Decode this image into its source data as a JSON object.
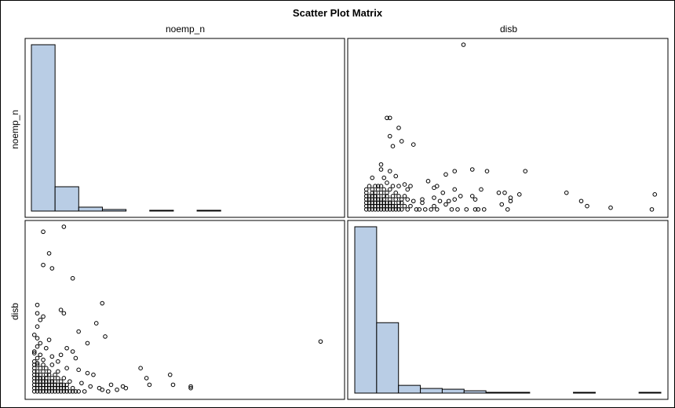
{
  "chart_data": {
    "type": "scatter",
    "title": "Scatter Plot Matrix",
    "variables": [
      "noemp_n",
      "disb"
    ],
    "colors": {
      "bar_fill": "#b9cde5",
      "bar_stroke": "#000000",
      "marker_stroke": "#000000",
      "frame": "#000000"
    },
    "marker": "open-circle",
    "panels": [
      {
        "id": "noemp_n-histogram",
        "type": "histogram",
        "variable": "noemp_n",
        "bins": 13,
        "counts": [
          212,
          31,
          5,
          2,
          0,
          1,
          0,
          1,
          0,
          0,
          0,
          0,
          0
        ]
      },
      {
        "id": "disb-vs-noemp_n",
        "type": "scatter",
        "x_variable": "disb",
        "y_variable": "noemp_n",
        "xlim": [
          0,
          100
        ],
        "ylim": [
          0,
          100
        ],
        "points": [
          [
            34,
            100
          ],
          [
            8,
            56
          ],
          [
            9,
            56
          ],
          [
            12,
            50
          ],
          [
            9,
            45
          ],
          [
            13,
            42
          ],
          [
            10,
            39
          ],
          [
            17,
            40
          ],
          [
            6,
            28
          ],
          [
            6,
            25
          ],
          [
            9,
            24
          ],
          [
            11,
            21
          ],
          [
            7,
            20
          ],
          [
            3,
            20
          ],
          [
            31,
            24
          ],
          [
            37,
            25
          ],
          [
            42,
            24
          ],
          [
            55,
            24
          ],
          [
            28,
            22
          ],
          [
            5,
            15
          ],
          [
            8,
            17
          ],
          [
            14,
            16
          ],
          [
            22,
            18
          ],
          [
            24,
            14
          ],
          [
            25,
            15
          ],
          [
            27,
            11
          ],
          [
            31,
            13
          ],
          [
            40,
            13
          ],
          [
            46,
            11
          ],
          [
            48,
            11
          ],
          [
            50,
            8
          ],
          [
            53,
            10
          ],
          [
            69,
            11
          ],
          [
            37,
            9
          ],
          [
            50,
            6
          ],
          [
            47,
            4
          ],
          [
            49,
            1
          ],
          [
            20,
            5
          ],
          [
            24,
            3
          ],
          [
            28,
            4
          ],
          [
            23,
            1
          ],
          [
            25,
            1
          ],
          [
            30,
            1
          ],
          [
            32,
            1
          ],
          [
            35,
            1
          ],
          [
            38,
            1
          ],
          [
            39,
            1
          ],
          [
            41,
            1
          ],
          [
            29,
            6
          ],
          [
            31,
            7
          ],
          [
            33,
            9
          ],
          [
            38,
            7
          ],
          [
            24,
            8
          ],
          [
            26,
            6
          ],
          [
            17,
            6
          ],
          [
            20,
            7
          ],
          [
            74,
            6
          ],
          [
            76,
            3
          ],
          [
            84,
            2
          ],
          [
            98,
            1
          ],
          [
            99,
            10
          ],
          [
            1,
            1
          ],
          [
            2,
            1
          ],
          [
            3,
            1
          ],
          [
            4,
            1
          ],
          [
            5,
            1
          ],
          [
            6,
            1
          ],
          [
            7,
            1
          ],
          [
            8,
            1
          ],
          [
            9,
            1
          ],
          [
            10,
            1
          ],
          [
            11,
            1
          ],
          [
            12,
            1
          ],
          [
            13,
            1
          ],
          [
            15,
            1
          ],
          [
            18,
            1
          ],
          [
            19,
            1
          ],
          [
            21,
            1
          ],
          [
            1,
            3
          ],
          [
            2,
            3
          ],
          [
            3,
            3
          ],
          [
            4,
            3
          ],
          [
            5,
            3
          ],
          [
            6,
            3
          ],
          [
            7,
            3
          ],
          [
            8,
            3
          ],
          [
            9,
            3
          ],
          [
            10,
            3
          ],
          [
            11,
            3
          ],
          [
            12,
            3
          ],
          [
            14,
            3
          ],
          [
            16,
            3
          ],
          [
            1,
            5
          ],
          [
            2,
            5
          ],
          [
            3,
            5
          ],
          [
            4,
            5
          ],
          [
            5,
            5
          ],
          [
            6,
            5
          ],
          [
            7,
            5
          ],
          [
            8,
            5
          ],
          [
            9,
            5
          ],
          [
            10,
            5
          ],
          [
            12,
            5
          ],
          [
            13,
            5
          ],
          [
            1,
            7
          ],
          [
            2,
            7
          ],
          [
            3,
            7
          ],
          [
            4,
            7
          ],
          [
            5,
            7
          ],
          [
            6,
            7
          ],
          [
            7,
            7
          ],
          [
            9,
            7
          ],
          [
            11,
            7
          ],
          [
            13,
            7
          ],
          [
            15,
            7
          ],
          [
            1,
            9
          ],
          [
            2,
            9
          ],
          [
            3,
            9
          ],
          [
            4,
            9
          ],
          [
            5,
            9
          ],
          [
            7,
            9
          ],
          [
            8,
            9
          ],
          [
            10,
            9
          ],
          [
            12,
            9
          ],
          [
            14,
            9
          ],
          [
            1,
            11
          ],
          [
            3,
            11
          ],
          [
            4,
            11
          ],
          [
            6,
            11
          ],
          [
            8,
            11
          ],
          [
            11,
            11
          ],
          [
            1,
            13
          ],
          [
            3,
            13
          ],
          [
            5,
            13
          ],
          [
            7,
            13
          ],
          [
            9,
            13
          ],
          [
            15,
            13
          ],
          [
            2,
            15
          ],
          [
            4,
            15
          ],
          [
            6,
            15
          ],
          [
            10,
            15
          ],
          [
            12,
            15
          ],
          [
            16,
            15
          ]
        ]
      },
      {
        "id": "noemp_n-vs-disb",
        "type": "scatter",
        "x_variable": "noemp_n",
        "y_variable": "disb",
        "xlim": [
          0,
          100
        ],
        "ylim": [
          0,
          100
        ],
        "points": [
          [
            11,
            100
          ],
          [
            4,
            97
          ],
          [
            6,
            84
          ],
          [
            4,
            77
          ],
          [
            7,
            75
          ],
          [
            14,
            69
          ],
          [
            2,
            53
          ],
          [
            24,
            54
          ],
          [
            10,
            50
          ],
          [
            11,
            48
          ],
          [
            4,
            46
          ],
          [
            22,
            42
          ],
          [
            16,
            37
          ],
          [
            25,
            34
          ],
          [
            19,
            30
          ],
          [
            12,
            27
          ],
          [
            98,
            31
          ],
          [
            2,
            33
          ],
          [
            3,
            30
          ],
          [
            6,
            32
          ],
          [
            5,
            27
          ],
          [
            14,
            25
          ],
          [
            7,
            22
          ],
          [
            10,
            23
          ],
          [
            4,
            20
          ],
          [
            9,
            19
          ],
          [
            15,
            21
          ],
          [
            2,
            18
          ],
          [
            12,
            15
          ],
          [
            16,
            14
          ],
          [
            19,
            12
          ],
          [
            21,
            11
          ],
          [
            37,
            15
          ],
          [
            39,
            9
          ],
          [
            47,
            11
          ],
          [
            48,
            5
          ],
          [
            40,
            5
          ],
          [
            27,
            5
          ],
          [
            32,
            3
          ],
          [
            31,
            4
          ],
          [
            29,
            2
          ],
          [
            24,
            2
          ],
          [
            23,
            3
          ],
          [
            26,
            1
          ],
          [
            54,
            4
          ],
          [
            54,
            3
          ],
          [
            20,
            4
          ],
          [
            17,
            6
          ],
          [
            13,
            7
          ],
          [
            1,
            1
          ],
          [
            2,
            1
          ],
          [
            3,
            1
          ],
          [
            4,
            1
          ],
          [
            5,
            1
          ],
          [
            6,
            1
          ],
          [
            7,
            1
          ],
          [
            8,
            1
          ],
          [
            9,
            1
          ],
          [
            10,
            1
          ],
          [
            11,
            1
          ],
          [
            12,
            1
          ],
          [
            13,
            1
          ],
          [
            14,
            1
          ],
          [
            15,
            1
          ],
          [
            16,
            1
          ],
          [
            18,
            1
          ],
          [
            1,
            3
          ],
          [
            2,
            3
          ],
          [
            3,
            3
          ],
          [
            4,
            3
          ],
          [
            5,
            3
          ],
          [
            6,
            3
          ],
          [
            7,
            3
          ],
          [
            8,
            3
          ],
          [
            9,
            3
          ],
          [
            10,
            3
          ],
          [
            11,
            3
          ],
          [
            12,
            3
          ],
          [
            14,
            3
          ],
          [
            1,
            5
          ],
          [
            2,
            5
          ],
          [
            3,
            5
          ],
          [
            4,
            5
          ],
          [
            5,
            5
          ],
          [
            6,
            5
          ],
          [
            7,
            5
          ],
          [
            8,
            5
          ],
          [
            9,
            5
          ],
          [
            10,
            5
          ],
          [
            11,
            5
          ],
          [
            12,
            5
          ],
          [
            1,
            7
          ],
          [
            2,
            7
          ],
          [
            3,
            7
          ],
          [
            4,
            7
          ],
          [
            5,
            7
          ],
          [
            6,
            7
          ],
          [
            7,
            7
          ],
          [
            8,
            7
          ],
          [
            10,
            7
          ],
          [
            1,
            9
          ],
          [
            2,
            9
          ],
          [
            3,
            9
          ],
          [
            4,
            9
          ],
          [
            5,
            9
          ],
          [
            7,
            9
          ],
          [
            9,
            9
          ],
          [
            11,
            9
          ],
          [
            1,
            11
          ],
          [
            2,
            11
          ],
          [
            3,
            11
          ],
          [
            5,
            11
          ],
          [
            6,
            11
          ],
          [
            8,
            11
          ],
          [
            1,
            13
          ],
          [
            2,
            13
          ],
          [
            4,
            13
          ],
          [
            6,
            13
          ],
          [
            1,
            15
          ],
          [
            3,
            15
          ],
          [
            5,
            15
          ],
          [
            1,
            17
          ],
          [
            2,
            17
          ],
          [
            4,
            17
          ],
          [
            1,
            19
          ],
          [
            2,
            21
          ],
          [
            3,
            23
          ],
          [
            1,
            25
          ],
          [
            2,
            28
          ],
          [
            1,
            35
          ],
          [
            2,
            40
          ],
          [
            3,
            44
          ],
          [
            2,
            48
          ],
          [
            1,
            24
          ],
          [
            7,
            17
          ],
          [
            9,
            13
          ]
        ]
      },
      {
        "id": "disb-histogram",
        "type": "histogram",
        "variable": "disb",
        "bins": 14,
        "counts": [
          215,
          91,
          10,
          6,
          5,
          3,
          1,
          1,
          0,
          0,
          1,
          0,
          0,
          1
        ]
      }
    ]
  }
}
